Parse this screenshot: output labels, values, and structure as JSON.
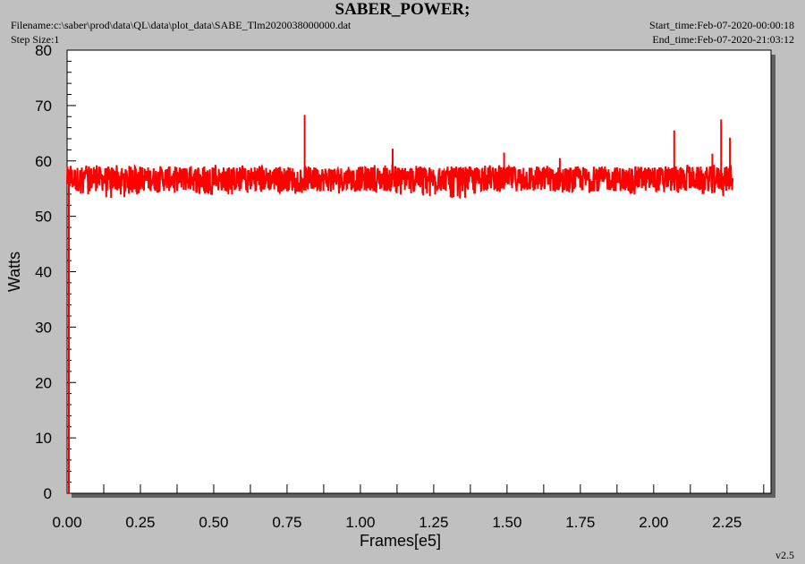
{
  "header": {
    "title": "SABER_POWER;",
    "filename": "Filename:c:\\saber\\prod\\data\\QL\\data\\plot_data\\SABE_Tlm2020038000000.dat",
    "step_size": "Step Size:1",
    "start_time": "Start_time:Feb-07-2020-00:00:18",
    "end_time": "End_time:Feb-07-2020-21:03:12"
  },
  "version": "v2.5",
  "colors": {
    "background": "#c0c0c0",
    "plot_area": "#ffffff",
    "series": "#ff0000",
    "axis": "#000000",
    "shadow": "#606060"
  },
  "chart_data": {
    "type": "line",
    "title": "SABER_POWER;",
    "xlabel": "Frames[e5]",
    "ylabel": "Watts",
    "xlim": [
      0,
      2.4
    ],
    "ylim": [
      0,
      80
    ],
    "x_ticks": [
      0.0,
      0.25,
      0.5,
      0.75,
      1.0,
      1.25,
      1.5,
      1.75,
      2.0,
      2.25
    ],
    "x_tick_labels": [
      "0.00",
      "0.25",
      "0.50",
      "0.75",
      "1.00",
      "1.25",
      "1.50",
      "1.75",
      "2.00",
      "2.25"
    ],
    "y_ticks": [
      0,
      10,
      20,
      30,
      40,
      50,
      60,
      70,
      80
    ],
    "y_tick_labels": [
      "0",
      "10",
      "20",
      "30",
      "40",
      "50",
      "60",
      "70",
      "80"
    ],
    "grid": false,
    "series": [
      {
        "color": "#ff0000",
        "x_range": [
          0.0,
          2.27
        ],
        "baseline": 56.8,
        "band_low": 54.5,
        "band_high": 59.0,
        "envelope": [
          [
            0.0,
            53.5,
            59.5
          ],
          [
            0.1,
            53.8,
            59.3
          ],
          [
            0.15,
            52.8,
            59.6
          ],
          [
            0.25,
            54.0,
            59.0
          ],
          [
            0.35,
            54.0,
            59.0
          ],
          [
            0.5,
            53.8,
            59.3
          ],
          [
            0.6,
            54.0,
            59.2
          ],
          [
            0.75,
            54.0,
            59.0
          ],
          [
            0.9,
            54.2,
            58.8
          ],
          [
            1.0,
            53.8,
            59.0
          ],
          [
            1.1,
            54.0,
            59.5
          ],
          [
            1.25,
            53.5,
            59.0
          ],
          [
            1.3,
            53.0,
            58.5
          ],
          [
            1.45,
            53.8,
            59.3
          ],
          [
            1.6,
            54.0,
            59.3
          ],
          [
            1.75,
            54.2,
            59.0
          ],
          [
            1.9,
            54.0,
            59.0
          ],
          [
            2.0,
            53.8,
            59.0
          ],
          [
            2.1,
            54.0,
            59.3
          ],
          [
            2.27,
            53.5,
            59.5
          ]
        ],
        "spikes": [
          {
            "x": 0.81,
            "y": 68.3
          },
          {
            "x": 1.11,
            "y": 62.2
          },
          {
            "x": 1.49,
            "y": 61.5
          },
          {
            "x": 1.68,
            "y": 60.5
          },
          {
            "x": 2.07,
            "y": 65.5
          },
          {
            "x": 2.2,
            "y": 61.3
          },
          {
            "x": 2.23,
            "y": 67.5
          },
          {
            "x": 2.26,
            "y": 64.2
          }
        ]
      }
    ]
  }
}
